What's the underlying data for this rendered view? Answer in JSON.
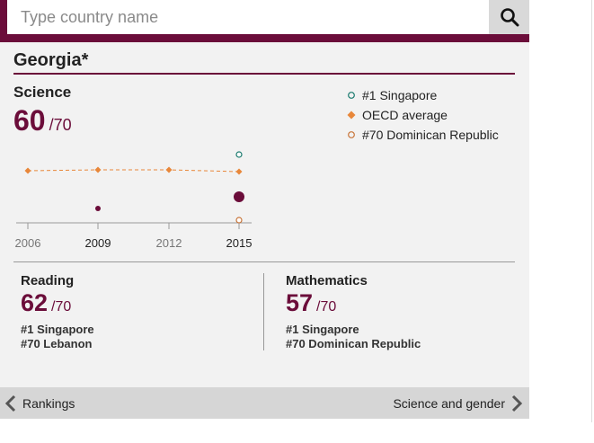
{
  "search": {
    "placeholder": "Type country name",
    "icon": "search-icon"
  },
  "country": "Georgia*",
  "main": {
    "subject": "Science",
    "score": "60",
    "out_of": "/70"
  },
  "legend": [
    {
      "label": "#1 Singapore",
      "marker": "open-circle",
      "color": "#1a7a6e"
    },
    {
      "label": "OECD average",
      "marker": "diamond",
      "color": "#e8873a"
    },
    {
      "label": "#70 Dominican Republic",
      "marker": "open-circle",
      "color": "#c8753a"
    }
  ],
  "chart_data": {
    "type": "scatter",
    "x": [
      "2006",
      "2009",
      "2012",
      "2015"
    ],
    "series": [
      {
        "name": "OECD average",
        "ranks": [
          null,
          null,
          null,
          null
        ],
        "points": [
          [
            0,
            1
          ],
          [
            1,
            1
          ],
          [
            2,
            1
          ],
          [
            3,
            1
          ]
        ]
      },
      {
        "name": "Georgia*",
        "points": [
          [
            1,
            null
          ],
          [
            3,
            60
          ]
        ]
      },
      {
        "name": "#1 Singapore",
        "points": [
          [
            3,
            1
          ]
        ]
      },
      {
        "name": "#70 Dominican Republic",
        "points": [
          [
            3,
            70
          ]
        ]
      }
    ]
  },
  "panels": {
    "reading": {
      "title": "Reading",
      "score": "62",
      "out_of": "/70",
      "top": "#1 Singapore",
      "bottom": "#70 Lebanon"
    },
    "math": {
      "title": "Mathematics",
      "score": "57",
      "out_of": "/70",
      "top": "#1 Singapore",
      "bottom": "#70 Dominican Republic"
    }
  },
  "footer": {
    "prev_label": "Rankings",
    "next_label": "Science and gender"
  },
  "colors": {
    "brand": "#6b0d3a",
    "oecd": "#e8873a",
    "top": "#1a7a6e",
    "bottom": "#c8753a"
  }
}
